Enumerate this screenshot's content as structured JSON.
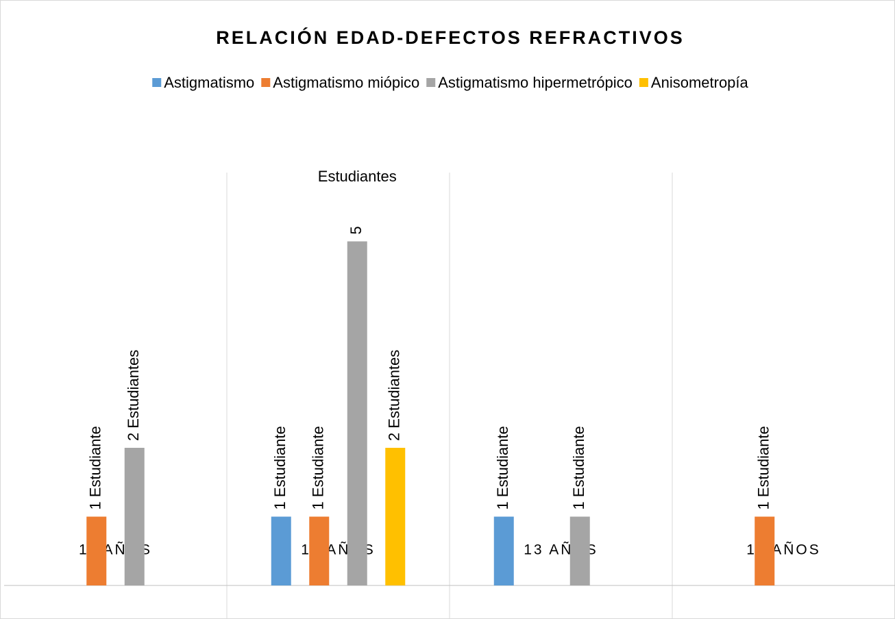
{
  "chart_data": {
    "type": "bar",
    "title": "RELACIÓN EDAD-DEFECTOS REFRACTIVOS",
    "categories": [
      "11 AÑOS",
      "12 AÑOS",
      "13 AÑOS",
      "15 AÑOS"
    ],
    "series": [
      {
        "name": "Astigmatismo",
        "color": "#5b9bd5",
        "values": [
          null,
          1,
          1,
          null
        ],
        "value_labels": [
          null,
          "1 Estudiante",
          "1 Estudiante",
          null
        ]
      },
      {
        "name": "Astigmatismo miópico",
        "color": "#ed7d31",
        "values": [
          1,
          1,
          null,
          1
        ],
        "value_labels": [
          "1 Estudiante",
          "1 Estudiante",
          null,
          "1 Estudiante"
        ]
      },
      {
        "name": "Astigmatismo hipermetrópico",
        "color": "#a5a5a5",
        "values": [
          2,
          5,
          1,
          null
        ],
        "value_labels": [
          "2 Estudiantes",
          "5 Estudiantes",
          "1 Estudiante",
          null
        ]
      },
      {
        "name": "Anisometropía",
        "color": "#ffc000",
        "values": [
          null,
          2,
          null,
          null
        ],
        "value_labels": [
          null,
          "2 Estudiantes",
          null,
          null
        ]
      }
    ],
    "ylim": [
      0,
      6
    ],
    "grid": true,
    "legend": "top"
  }
}
